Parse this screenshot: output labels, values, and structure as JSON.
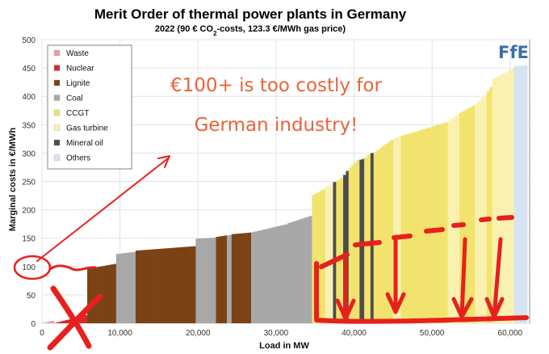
{
  "chart_data": {
    "type": "bar",
    "title": "Merit Order of thermal power plants in Germany",
    "subtitle_pre": "2022 (90 € CO",
    "subtitle_sub": "2",
    "subtitle_post": "-costs, 123.3 €/MWh gas price)",
    "xlabel": "Load in MW",
    "ylabel": "Marginal costs in €/MWh",
    "xlim": [
      0,
      62500
    ],
    "ylim": [
      0,
      500
    ],
    "x_ticks": [
      0,
      10000,
      20000,
      30000,
      40000,
      50000,
      60000
    ],
    "x_tick_labels": [
      "0",
      "10,000",
      "20,000",
      "30,000",
      "40,000",
      "50,000",
      "60,000"
    ],
    "y_ticks": [
      0,
      50,
      100,
      150,
      200,
      250,
      300,
      350,
      400,
      450,
      500
    ],
    "grid": true,
    "legend_position": "top-left",
    "legend": [
      {
        "name": "Waste",
        "color": "#e6a0a6"
      },
      {
        "name": "Nuclear",
        "color": "#d8292c"
      },
      {
        "name": "Lignite",
        "color": "#7b4215"
      },
      {
        "name": "Coal",
        "color": "#a8a8a8"
      },
      {
        "name": "CCGT",
        "color": "#f2e36e"
      },
      {
        "name": "Gas turbine",
        "color": "#faf1b0"
      },
      {
        "name": "Mineral oil",
        "color": "#4d4d4d"
      },
      {
        "name": "Others",
        "color": "#d6e3f3"
      }
    ],
    "segments": [
      {
        "series": "Waste",
        "x0": 0,
        "x1": 1500,
        "y0": 0,
        "y1": 5
      },
      {
        "series": "Nuclear",
        "x0": 1500,
        "x1": 5800,
        "y0": 0,
        "y1": 15
      },
      {
        "series": "Lignite",
        "x0": 5800,
        "x1": 9500,
        "y0": 96,
        "y1": 105
      },
      {
        "series": "Coal",
        "x0": 9500,
        "x1": 12000,
        "y0": 122,
        "y1": 126
      },
      {
        "series": "Lignite",
        "x0": 12000,
        "x1": 19700,
        "y0": 128,
        "y1": 136
      },
      {
        "series": "Coal",
        "x0": 19700,
        "x1": 22300,
        "y0": 149,
        "y1": 151
      },
      {
        "series": "Lignite",
        "x0": 22300,
        "x1": 23700,
        "y0": 152,
        "y1": 155
      },
      {
        "series": "Coal",
        "x0": 23700,
        "x1": 24300,
        "y0": 155,
        "y1": 156
      },
      {
        "series": "Lignite",
        "x0": 24300,
        "x1": 26800,
        "y0": 157,
        "y1": 160
      },
      {
        "series": "Coal",
        "x0": 26800,
        "x1": 31500,
        "y0": 160,
        "y1": 175
      },
      {
        "series": "Coal",
        "x0": 31500,
        "x1": 34600,
        "y0": 176,
        "y1": 190
      },
      {
        "series": "CCGT",
        "x0": 34600,
        "x1": 36300,
        "y0": 225,
        "y1": 238
      },
      {
        "series": "Gas turbine",
        "x0": 36300,
        "x1": 37300,
        "y0": 240,
        "y1": 248
      },
      {
        "series": "Mineral oil",
        "x0": 37300,
        "x1": 37700,
        "y0": 248,
        "y1": 250
      },
      {
        "series": "CCGT",
        "x0": 37700,
        "x1": 38600,
        "y0": 250,
        "y1": 258
      },
      {
        "series": "Mineral oil",
        "x0": 38600,
        "x1": 39300,
        "y0": 258,
        "y1": 272
      },
      {
        "series": "CCGT",
        "x0": 39300,
        "x1": 40700,
        "y0": 272,
        "y1": 290
      },
      {
        "series": "Mineral oil",
        "x0": 40700,
        "x1": 41300,
        "y0": 288,
        "y1": 290
      },
      {
        "series": "CCGT",
        "x0": 41300,
        "x1": 42100,
        "y0": 290,
        "y1": 300
      },
      {
        "series": "Mineral oil",
        "x0": 42100,
        "x1": 42500,
        "y0": 300,
        "y1": 300
      },
      {
        "series": "CCGT",
        "x0": 42500,
        "x1": 45000,
        "y0": 300,
        "y1": 325
      },
      {
        "series": "Gas turbine",
        "x0": 45000,
        "x1": 46000,
        "y0": 325,
        "y1": 330
      },
      {
        "series": "CCGT",
        "x0": 46000,
        "x1": 52000,
        "y0": 330,
        "y1": 355
      },
      {
        "series": "Gas turbine",
        "x0": 52000,
        "x1": 53500,
        "y0": 355,
        "y1": 370
      },
      {
        "series": "CCGT",
        "x0": 53500,
        "x1": 55500,
        "y0": 370,
        "y1": 385
      },
      {
        "series": "Gas turbine",
        "x0": 55500,
        "x1": 57000,
        "y0": 385,
        "y1": 405
      },
      {
        "series": "CCGT",
        "x0": 57000,
        "x1": 57700,
        "y0": 405,
        "y1": 420
      },
      {
        "series": "Gas turbine",
        "x0": 57700,
        "x1": 60500,
        "y0": 430,
        "y1": 450
      },
      {
        "series": "Others",
        "x0": 60500,
        "x1": 62200,
        "y0": 453,
        "y1": 455
      }
    ],
    "annotations": [
      {
        "text": "€100+ is too costly for"
      },
      {
        "text": "German industry!"
      }
    ]
  },
  "logo": {
    "text": "FfE"
  },
  "colors": {
    "annotation": "#e8643c",
    "marker": "#e8201c"
  }
}
